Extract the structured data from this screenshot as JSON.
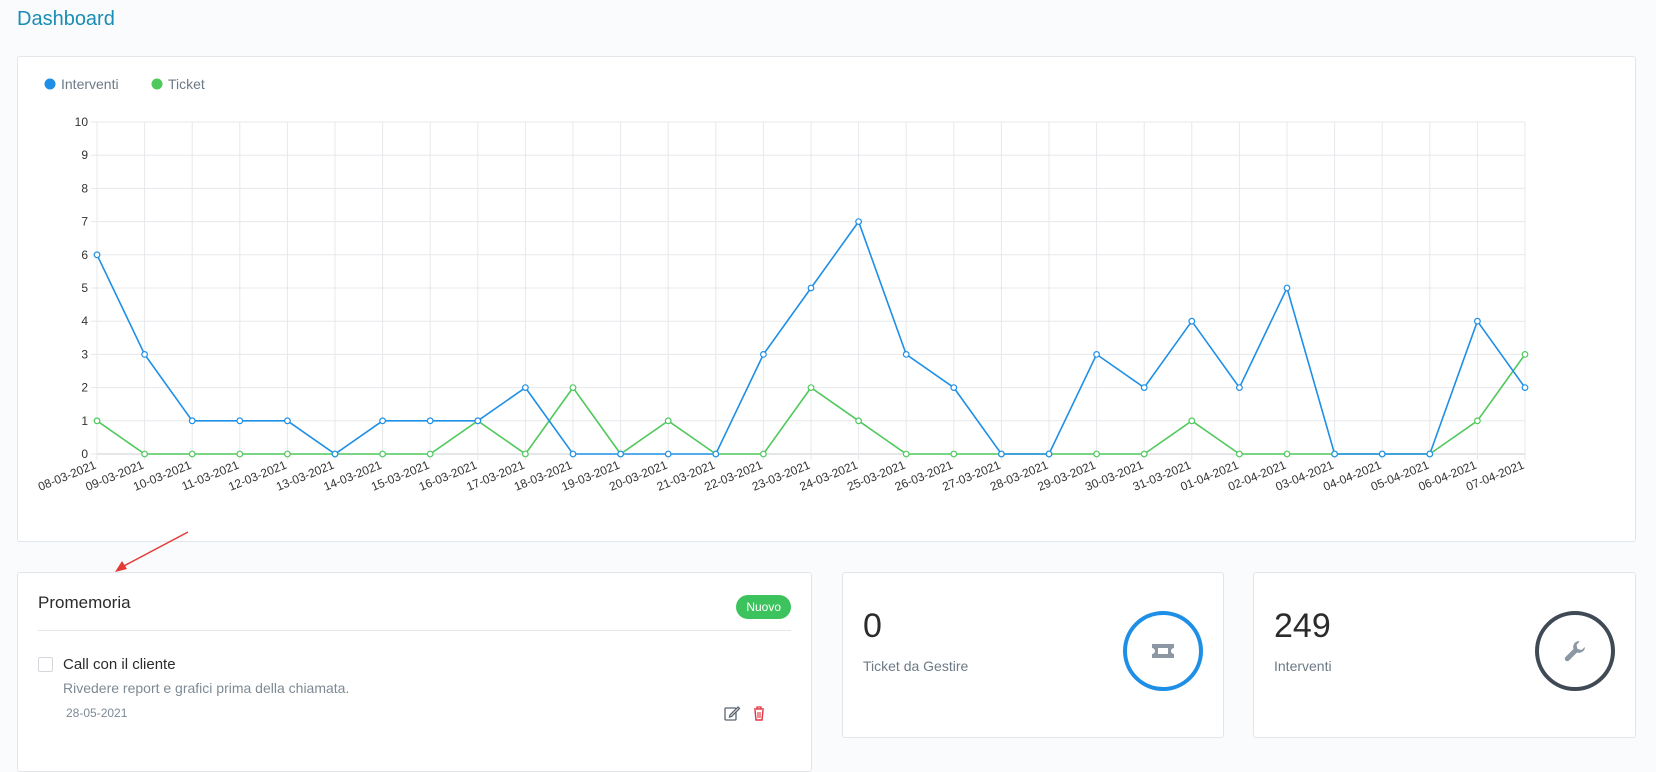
{
  "page": {
    "title": "Dashboard"
  },
  "chart_data": {
    "type": "line",
    "x": [
      "08-03-2021",
      "09-03-2021",
      "10-03-2021",
      "11-03-2021",
      "12-03-2021",
      "13-03-2021",
      "14-03-2021",
      "15-03-2021",
      "16-03-2021",
      "17-03-2021",
      "18-03-2021",
      "19-03-2021",
      "20-03-2021",
      "21-03-2021",
      "22-03-2021",
      "23-03-2021",
      "24-03-2021",
      "25-03-2021",
      "26-03-2021",
      "27-03-2021",
      "28-03-2021",
      "29-03-2021",
      "30-03-2021",
      "31-03-2021",
      "01-04-2021",
      "02-04-2021",
      "03-04-2021",
      "04-04-2021",
      "05-04-2021",
      "06-04-2021",
      "07-04-2021"
    ],
    "series": [
      {
        "name": "Interventi",
        "color": "#1e8fe6",
        "values": [
          6,
          3,
          1,
          1,
          1,
          0,
          1,
          1,
          1,
          2,
          0,
          0,
          0,
          0,
          3,
          5,
          7,
          3,
          2,
          0,
          0,
          3,
          2,
          4,
          2,
          5,
          0,
          0,
          0,
          4,
          2
        ]
      },
      {
        "name": "Ticket",
        "color": "#4fc85c",
        "values": [
          1,
          0,
          0,
          0,
          0,
          0,
          0,
          0,
          1,
          0,
          2,
          0,
          1,
          0,
          0,
          2,
          1,
          0,
          0,
          0,
          0,
          0,
          0,
          1,
          0,
          0,
          0,
          0,
          0,
          1,
          3
        ]
      }
    ],
    "ylim": [
      0,
      10
    ],
    "yticks": [
      "0",
      "1",
      "2",
      "3",
      "4",
      "5",
      "6",
      "7",
      "8",
      "9",
      "10"
    ],
    "grid": true,
    "legend": "top-left"
  },
  "promemoria": {
    "title": "Promemoria",
    "new_label": "Nuovo",
    "items": [
      {
        "title": "Call con il cliente",
        "description": "Rivedere report e grafici prima della chiamata.",
        "date": "28-05-2021",
        "checked": false
      }
    ]
  },
  "stats": {
    "ticket": {
      "value": "0",
      "label": "Ticket da Gestire",
      "icon": "ticket-icon",
      "color": "#1e8fe6"
    },
    "interventi": {
      "value": "249",
      "label": "Interventi",
      "icon": "wrench-icon",
      "color": "#3f4a55"
    }
  }
}
